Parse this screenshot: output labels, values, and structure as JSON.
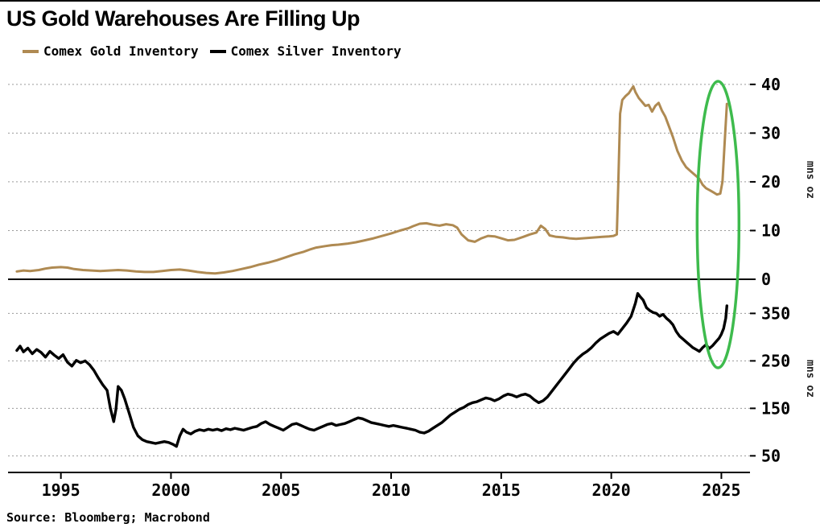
{
  "title": "US Gold Warehouses Are Filling Up",
  "source": "Source: Bloomberg; Macrobond",
  "legend": [
    {
      "label": "Comex Gold Inventory",
      "color": "#AF8A52"
    },
    {
      "label": "Comex Silver Inventory",
      "color": "#000000"
    }
  ],
  "colors": {
    "gold_line": "#AF8A52",
    "silver_line": "#000000",
    "gridline": "#9a9a9a",
    "axis": "#000000",
    "highlight_green": "#3EBB4D",
    "background": "#ffffff"
  },
  "x_axis": {
    "lim": [
      1992.6,
      2026.3
    ],
    "ticks": [
      1995,
      2000,
      2005,
      2010,
      2015,
      2020,
      2025
    ]
  },
  "annotation": {
    "shape": "ellipse",
    "color": "#3EBB4D",
    "x_center_year": 2024.85,
    "note": "highlights the 2025 spike in both gold and silver inventories"
  },
  "chart_data": [
    {
      "type": "line",
      "name": "Comex Gold Inventory",
      "color": "#AF8A52",
      "ylabel": "mns oz",
      "yticks": [
        0,
        10,
        20,
        30,
        40
      ],
      "ylim": [
        0,
        40.8
      ],
      "points": [
        [
          1993.0,
          1.6
        ],
        [
          1993.3,
          1.8
        ],
        [
          1993.6,
          1.7
        ],
        [
          1994.0,
          1.9
        ],
        [
          1994.3,
          2.2
        ],
        [
          1994.6,
          2.4
        ],
        [
          1995.0,
          2.5
        ],
        [
          1995.3,
          2.4
        ],
        [
          1995.6,
          2.1
        ],
        [
          1996.0,
          1.9
        ],
        [
          1996.4,
          1.8
        ],
        [
          1996.8,
          1.7
        ],
        [
          1997.2,
          1.8
        ],
        [
          1997.6,
          1.9
        ],
        [
          1998.0,
          1.8
        ],
        [
          1998.4,
          1.6
        ],
        [
          1998.8,
          1.5
        ],
        [
          1999.2,
          1.5
        ],
        [
          1999.6,
          1.7
        ],
        [
          2000.0,
          1.9
        ],
        [
          2000.4,
          2.0
        ],
        [
          2000.8,
          1.8
        ],
        [
          2001.2,
          1.5
        ],
        [
          2001.6,
          1.3
        ],
        [
          2002.0,
          1.2
        ],
        [
          2002.4,
          1.4
        ],
        [
          2002.8,
          1.7
        ],
        [
          2003.2,
          2.1
        ],
        [
          2003.6,
          2.5
        ],
        [
          2004.0,
          3.0
        ],
        [
          2004.4,
          3.4
        ],
        [
          2004.8,
          3.9
        ],
        [
          2005.2,
          4.5
        ],
        [
          2005.6,
          5.1
        ],
        [
          2006.0,
          5.6
        ],
        [
          2006.3,
          6.1
        ],
        [
          2006.6,
          6.5
        ],
        [
          2007.0,
          6.8
        ],
        [
          2007.3,
          7.0
        ],
        [
          2007.6,
          7.1
        ],
        [
          2008.0,
          7.3
        ],
        [
          2008.4,
          7.6
        ],
        [
          2008.8,
          8.0
        ],
        [
          2009.2,
          8.4
        ],
        [
          2009.6,
          8.9
        ],
        [
          2010.0,
          9.4
        ],
        [
          2010.4,
          10.0
        ],
        [
          2010.8,
          10.5
        ],
        [
          2011.0,
          10.9
        ],
        [
          2011.3,
          11.4
        ],
        [
          2011.6,
          11.5
        ],
        [
          2011.9,
          11.2
        ],
        [
          2012.2,
          11.0
        ],
        [
          2012.5,
          11.3
        ],
        [
          2012.8,
          11.1
        ],
        [
          2013.0,
          10.6
        ],
        [
          2013.2,
          9.2
        ],
        [
          2013.5,
          8.0
        ],
        [
          2013.8,
          7.7
        ],
        [
          2014.1,
          8.4
        ],
        [
          2014.4,
          8.9
        ],
        [
          2014.7,
          8.8
        ],
        [
          2015.0,
          8.4
        ],
        [
          2015.3,
          8.0
        ],
        [
          2015.6,
          8.1
        ],
        [
          2016.0,
          8.7
        ],
        [
          2016.3,
          9.2
        ],
        [
          2016.6,
          9.6
        ],
        [
          2016.8,
          11.0
        ],
        [
          2017.0,
          10.3
        ],
        [
          2017.2,
          9.0
        ],
        [
          2017.5,
          8.7
        ],
        [
          2017.8,
          8.6
        ],
        [
          2018.1,
          8.4
        ],
        [
          2018.4,
          8.3
        ],
        [
          2018.7,
          8.4
        ],
        [
          2019.0,
          8.5
        ],
        [
          2019.3,
          8.6
        ],
        [
          2019.6,
          8.7
        ],
        [
          2019.9,
          8.8
        ],
        [
          2020.1,
          8.9
        ],
        [
          2020.25,
          9.2
        ],
        [
          2020.32,
          20.0
        ],
        [
          2020.4,
          34.0
        ],
        [
          2020.5,
          36.8
        ],
        [
          2020.65,
          37.6
        ],
        [
          2020.8,
          38.2
        ],
        [
          2021.0,
          39.6
        ],
        [
          2021.1,
          38.4
        ],
        [
          2021.25,
          37.2
        ],
        [
          2021.4,
          36.4
        ],
        [
          2021.55,
          35.6
        ],
        [
          2021.7,
          35.8
        ],
        [
          2021.85,
          34.4
        ],
        [
          2022.0,
          35.6
        ],
        [
          2022.15,
          36.2
        ],
        [
          2022.3,
          34.6
        ],
        [
          2022.45,
          33.4
        ],
        [
          2022.6,
          31.6
        ],
        [
          2022.8,
          29.2
        ],
        [
          2023.0,
          26.4
        ],
        [
          2023.2,
          24.4
        ],
        [
          2023.4,
          23.0
        ],
        [
          2023.6,
          22.2
        ],
        [
          2023.8,
          21.4
        ],
        [
          2024.0,
          20.6
        ],
        [
          2024.15,
          19.4
        ],
        [
          2024.3,
          18.7
        ],
        [
          2024.5,
          18.2
        ],
        [
          2024.65,
          17.8
        ],
        [
          2024.8,
          17.4
        ],
        [
          2024.95,
          17.6
        ],
        [
          2025.05,
          20.0
        ],
        [
          2025.15,
          28.0
        ],
        [
          2025.25,
          36.0
        ]
      ]
    },
    {
      "type": "line",
      "name": "Comex Silver Inventory",
      "color": "#000000",
      "ylabel": "mns oz",
      "yticks": [
        50,
        150,
        250,
        350
      ],
      "ylim": [
        15,
        410
      ],
      "points": [
        [
          1993.0,
          272
        ],
        [
          1993.15,
          281
        ],
        [
          1993.3,
          269
        ],
        [
          1993.5,
          277
        ],
        [
          1993.7,
          265
        ],
        [
          1993.9,
          274
        ],
        [
          1994.1,
          268
        ],
        [
          1994.3,
          258
        ],
        [
          1994.5,
          270
        ],
        [
          1994.7,
          262
        ],
        [
          1994.9,
          255
        ],
        [
          1995.1,
          263
        ],
        [
          1995.3,
          247
        ],
        [
          1995.5,
          239
        ],
        [
          1995.7,
          251
        ],
        [
          1995.9,
          246
        ],
        [
          1996.1,
          250
        ],
        [
          1996.3,
          242
        ],
        [
          1996.5,
          230
        ],
        [
          1996.7,
          214
        ],
        [
          1996.9,
          200
        ],
        [
          1997.1,
          188
        ],
        [
          1997.25,
          150
        ],
        [
          1997.4,
          122
        ],
        [
          1997.5,
          148
        ],
        [
          1997.6,
          196
        ],
        [
          1997.75,
          188
        ],
        [
          1997.9,
          170
        ],
        [
          1998.1,
          140
        ],
        [
          1998.3,
          110
        ],
        [
          1998.5,
          92
        ],
        [
          1998.7,
          84
        ],
        [
          1998.9,
          80
        ],
        [
          1999.1,
          78
        ],
        [
          1999.3,
          76
        ],
        [
          1999.5,
          78
        ],
        [
          1999.7,
          80
        ],
        [
          1999.9,
          78
        ],
        [
          2000.1,
          74
        ],
        [
          2000.25,
          70
        ],
        [
          2000.4,
          92
        ],
        [
          2000.55,
          106
        ],
        [
          2000.7,
          100
        ],
        [
          2000.9,
          96
        ],
        [
          2001.1,
          102
        ],
        [
          2001.3,
          105
        ],
        [
          2001.5,
          103
        ],
        [
          2001.7,
          106
        ],
        [
          2001.9,
          104
        ],
        [
          2002.1,
          106
        ],
        [
          2002.3,
          103
        ],
        [
          2002.5,
          107
        ],
        [
          2002.7,
          105
        ],
        [
          2002.9,
          108
        ],
        [
          2003.1,
          106
        ],
        [
          2003.3,
          104
        ],
        [
          2003.5,
          107
        ],
        [
          2003.7,
          110
        ],
        [
          2003.9,
          112
        ],
        [
          2004.1,
          118
        ],
        [
          2004.3,
          122
        ],
        [
          2004.5,
          116
        ],
        [
          2004.7,
          112
        ],
        [
          2004.9,
          108
        ],
        [
          2005.1,
          104
        ],
        [
          2005.3,
          110
        ],
        [
          2005.5,
          116
        ],
        [
          2005.7,
          118
        ],
        [
          2005.9,
          114
        ],
        [
          2006.1,
          110
        ],
        [
          2006.3,
          106
        ],
        [
          2006.5,
          104
        ],
        [
          2006.7,
          108
        ],
        [
          2006.9,
          112
        ],
        [
          2007.1,
          116
        ],
        [
          2007.3,
          118
        ],
        [
          2007.5,
          114
        ],
        [
          2007.7,
          116
        ],
        [
          2007.9,
          118
        ],
        [
          2008.1,
          122
        ],
        [
          2008.3,
          126
        ],
        [
          2008.5,
          130
        ],
        [
          2008.7,
          128
        ],
        [
          2008.9,
          124
        ],
        [
          2009.1,
          120
        ],
        [
          2009.3,
          118
        ],
        [
          2009.5,
          116
        ],
        [
          2009.7,
          114
        ],
        [
          2009.9,
          112
        ],
        [
          2010.1,
          114
        ],
        [
          2010.3,
          112
        ],
        [
          2010.5,
          110
        ],
        [
          2010.7,
          108
        ],
        [
          2010.9,
          106
        ],
        [
          2011.1,
          104
        ],
        [
          2011.3,
          100
        ],
        [
          2011.5,
          98
        ],
        [
          2011.7,
          102
        ],
        [
          2011.9,
          108
        ],
        [
          2012.1,
          114
        ],
        [
          2012.3,
          120
        ],
        [
          2012.5,
          128
        ],
        [
          2012.7,
          136
        ],
        [
          2012.9,
          142
        ],
        [
          2013.1,
          148
        ],
        [
          2013.3,
          152
        ],
        [
          2013.5,
          158
        ],
        [
          2013.7,
          162
        ],
        [
          2013.9,
          164
        ],
        [
          2014.1,
          168
        ],
        [
          2014.3,
          172
        ],
        [
          2014.5,
          170
        ],
        [
          2014.7,
          166
        ],
        [
          2014.9,
          170
        ],
        [
          2015.1,
          176
        ],
        [
          2015.3,
          180
        ],
        [
          2015.5,
          178
        ],
        [
          2015.7,
          174
        ],
        [
          2015.9,
          178
        ],
        [
          2016.1,
          180
        ],
        [
          2016.3,
          176
        ],
        [
          2016.5,
          168
        ],
        [
          2016.7,
          162
        ],
        [
          2016.9,
          166
        ],
        [
          2017.1,
          174
        ],
        [
          2017.3,
          186
        ],
        [
          2017.5,
          198
        ],
        [
          2017.7,
          210
        ],
        [
          2017.9,
          222
        ],
        [
          2018.1,
          234
        ],
        [
          2018.3,
          246
        ],
        [
          2018.5,
          256
        ],
        [
          2018.7,
          264
        ],
        [
          2018.9,
          270
        ],
        [
          2019.1,
          278
        ],
        [
          2019.3,
          288
        ],
        [
          2019.5,
          296
        ],
        [
          2019.7,
          302
        ],
        [
          2019.9,
          308
        ],
        [
          2020.1,
          312
        ],
        [
          2020.3,
          306
        ],
        [
          2020.5,
          318
        ],
        [
          2020.7,
          330
        ],
        [
          2020.9,
          344
        ],
        [
          2021.0,
          358
        ],
        [
          2021.1,
          372
        ],
        [
          2021.2,
          392
        ],
        [
          2021.3,
          386
        ],
        [
          2021.45,
          378
        ],
        [
          2021.6,
          362
        ],
        [
          2021.75,
          356
        ],
        [
          2021.9,
          352
        ],
        [
          2022.05,
          350
        ],
        [
          2022.2,
          344
        ],
        [
          2022.35,
          348
        ],
        [
          2022.5,
          340
        ],
        [
          2022.65,
          334
        ],
        [
          2022.8,
          326
        ],
        [
          2022.95,
          312
        ],
        [
          2023.1,
          302
        ],
        [
          2023.25,
          296
        ],
        [
          2023.4,
          290
        ],
        [
          2023.55,
          284
        ],
        [
          2023.7,
          278
        ],
        [
          2023.85,
          274
        ],
        [
          2024.0,
          270
        ],
        [
          2024.15,
          278
        ],
        [
          2024.3,
          284
        ],
        [
          2024.45,
          276
        ],
        [
          2024.6,
          282
        ],
        [
          2024.75,
          290
        ],
        [
          2024.9,
          298
        ],
        [
          2025.0,
          306
        ],
        [
          2025.1,
          318
        ],
        [
          2025.2,
          340
        ],
        [
          2025.25,
          366
        ]
      ]
    }
  ]
}
